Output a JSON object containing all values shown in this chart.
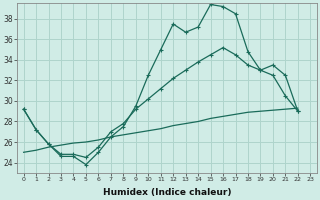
{
  "xlabel": "Humidex (Indice chaleur)",
  "background_color": "#d0ece6",
  "grid_color": "#aed4cc",
  "line_color": "#1a6b5a",
  "xlim": [
    -0.5,
    23.5
  ],
  "ylim": [
    23.0,
    39.5
  ],
  "yticks": [
    24,
    26,
    28,
    30,
    32,
    34,
    36,
    38
  ],
  "xticks": [
    0,
    1,
    2,
    3,
    4,
    5,
    6,
    7,
    8,
    9,
    10,
    11,
    12,
    13,
    14,
    15,
    16,
    17,
    18,
    19,
    20,
    21,
    22,
    23
  ],
  "line1_x": [
    0,
    1,
    2,
    3,
    4,
    5,
    6,
    7,
    8,
    9,
    10,
    11,
    12,
    13,
    14,
    15,
    16,
    17,
    18,
    19,
    20,
    21,
    22
  ],
  "line1_y": [
    29.2,
    27.2,
    25.8,
    24.6,
    24.6,
    23.8,
    25.0,
    26.5,
    27.5,
    29.5,
    32.5,
    35.0,
    37.5,
    36.7,
    37.2,
    39.4,
    39.2,
    38.5,
    34.8,
    33.0,
    32.5,
    30.5,
    29.0
  ],
  "line2_x": [
    0,
    1,
    2,
    3,
    4,
    5,
    6,
    7,
    8,
    9,
    10,
    11,
    12,
    13,
    14,
    15,
    16,
    17,
    18,
    19,
    20,
    21,
    22
  ],
  "line2_y": [
    29.2,
    27.2,
    25.8,
    24.8,
    24.8,
    24.5,
    25.5,
    27.0,
    27.8,
    29.2,
    30.2,
    31.2,
    32.2,
    33.0,
    33.8,
    34.5,
    35.2,
    34.5,
    33.5,
    33.0,
    33.5,
    32.5,
    29.0
  ],
  "line3_x": [
    0,
    1,
    2,
    3,
    4,
    5,
    6,
    7,
    8,
    9,
    10,
    11,
    12,
    13,
    14,
    15,
    16,
    17,
    18,
    19,
    20,
    21,
    22
  ],
  "line3_y": [
    25.0,
    25.2,
    25.5,
    25.7,
    25.9,
    26.0,
    26.2,
    26.5,
    26.7,
    26.9,
    27.1,
    27.3,
    27.6,
    27.8,
    28.0,
    28.3,
    28.5,
    28.7,
    28.9,
    29.0,
    29.1,
    29.2,
    29.3
  ]
}
